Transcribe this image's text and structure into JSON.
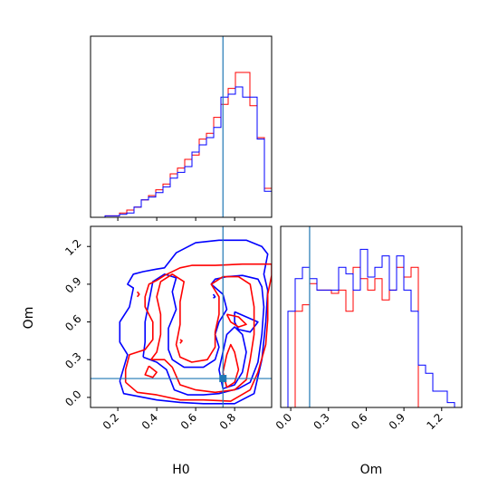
{
  "chart_data": {
    "type": "corner",
    "parameters": [
      "H0",
      "Om"
    ],
    "colors": {
      "red": "#ff0000",
      "blue": "#0000ff",
      "truth": "#1f77b4"
    },
    "truth": {
      "H0": 0.74,
      "Om": 0.15
    },
    "ranges": {
      "H0": [
        0.06,
        0.99
      ],
      "Om": [
        -0.08,
        1.36
      ]
    },
    "ticks": {
      "H0": [
        0.2,
        0.4,
        0.6,
        0.8
      ],
      "Om": [
        0.0,
        0.3,
        0.6,
        0.9,
        1.2
      ]
    },
    "tick_labels": {
      "H0": [
        "0.2",
        "0.4",
        "0.6",
        "0.8"
      ],
      "Om": [
        "0.0",
        "0.3",
        "0.6",
        "0.9",
        "1.2"
      ]
    },
    "xlabels": {
      "H0": "H0",
      "Om": "Om"
    },
    "ylabels": {
      "Om": "Om"
    },
    "hist_H0": {
      "edges": [
        0.06,
        0.0972,
        0.1344,
        0.1716,
        0.2088,
        0.246,
        0.2832,
        0.3204,
        0.3576,
        0.3948,
        0.432,
        0.4692,
        0.5064,
        0.5436,
        0.5808,
        0.618,
        0.6552,
        0.6924,
        0.7296,
        0.7668,
        0.804,
        0.8412,
        0.8784,
        0.9156,
        0.9528,
        0.99
      ],
      "series": [
        {
          "color": "red",
          "values": [
            0.0,
            0.0,
            0.01,
            0.01,
            0.03,
            0.05,
            0.07,
            0.12,
            0.15,
            0.19,
            0.23,
            0.3,
            0.34,
            0.4,
            0.43,
            0.54,
            0.58,
            0.69,
            0.78,
            0.89,
            1.0,
            1.0,
            0.77,
            0.55,
            0.2
          ]
        },
        {
          "color": "blue",
          "values": [
            0.0,
            0.0,
            0.01,
            0.01,
            0.02,
            0.03,
            0.07,
            0.12,
            0.14,
            0.17,
            0.21,
            0.27,
            0.31,
            0.35,
            0.45,
            0.5,
            0.55,
            0.62,
            0.83,
            0.85,
            0.9,
            0.83,
            0.83,
            0.54,
            0.18
          ]
        }
      ]
    },
    "hist_Om": {
      "edges": [
        -0.08,
        -0.0224,
        0.0352,
        0.0928,
        0.1504,
        0.208,
        0.2656,
        0.3232,
        0.3808,
        0.4384,
        0.496,
        0.5536,
        0.6112,
        0.6688,
        0.7264,
        0.784,
        0.8416,
        0.8992,
        0.9568,
        1.0144,
        1.072,
        1.1296,
        1.1872,
        1.2448,
        1.3024,
        1.36
      ],
      "series": [
        {
          "color": "red",
          "values": [
            0.0,
            0.0,
            0.59,
            0.63,
            0.76,
            0.72,
            0.72,
            0.7,
            0.72,
            0.59,
            0.86,
            0.79,
            0.72,
            0.79,
            0.66,
            0.72,
            0.86,
            0.8,
            0.86,
            0.0,
            0.0,
            0.0,
            0.0,
            0.0,
            0.0
          ]
        },
        {
          "color": "blue",
          "values": [
            0.0,
            0.59,
            0.79,
            0.86,
            0.79,
            0.72,
            0.72,
            0.72,
            0.86,
            0.82,
            0.72,
            0.97,
            0.8,
            0.86,
            0.93,
            0.72,
            0.93,
            0.72,
            0.59,
            0.26,
            0.21,
            0.1,
            0.1,
            0.03,
            0.0
          ]
        }
      ]
    },
    "contours": [
      {
        "color": "blue",
        "points": [
          [
            0.21,
            0.13
          ],
          [
            0.23,
            0.03
          ],
          [
            0.4,
            -0.02
          ],
          [
            0.52,
            -0.04
          ],
          [
            0.64,
            -0.05
          ],
          [
            0.8,
            -0.05
          ],
          [
            0.9,
            0.03
          ],
          [
            0.94,
            0.3
          ],
          [
            0.96,
            0.6
          ],
          [
            0.97,
            0.85
          ],
          [
            0.95,
            0.98
          ],
          [
            0.97,
            1.14
          ],
          [
            0.94,
            1.2
          ],
          [
            0.86,
            1.25
          ],
          [
            0.72,
            1.25
          ],
          [
            0.6,
            1.23
          ],
          [
            0.5,
            1.15
          ],
          [
            0.44,
            1.03
          ],
          [
            0.4,
            1.02
          ],
          [
            0.33,
            1.0
          ],
          [
            0.28,
            0.98
          ],
          [
            0.25,
            0.9
          ],
          [
            0.28,
            0.87
          ],
          [
            0.26,
            0.72
          ],
          [
            0.21,
            0.6
          ],
          [
            0.21,
            0.44
          ],
          [
            0.25,
            0.34
          ],
          [
            0.21,
            0.13
          ]
        ]
      },
      {
        "color": "blue",
        "points": [
          [
            0.33,
            0.32
          ],
          [
            0.4,
            0.28
          ],
          [
            0.45,
            0.22
          ],
          [
            0.49,
            0.06
          ],
          [
            0.56,
            0.02
          ],
          [
            0.64,
            0.02
          ],
          [
            0.72,
            0.03
          ],
          [
            0.82,
            0.07
          ],
          [
            0.88,
            0.12
          ],
          [
            0.92,
            0.28
          ],
          [
            0.94,
            0.5
          ],
          [
            0.95,
            0.72
          ],
          [
            0.94,
            0.88
          ],
          [
            0.92,
            0.94
          ],
          [
            0.84,
            0.97
          ],
          [
            0.76,
            0.96
          ],
          [
            0.7,
            0.94
          ],
          [
            0.68,
            0.9
          ],
          [
            0.74,
            0.82
          ],
          [
            0.76,
            0.7
          ],
          [
            0.72,
            0.6
          ],
          [
            0.7,
            0.5
          ],
          [
            0.72,
            0.4
          ],
          [
            0.7,
            0.3
          ],
          [
            0.64,
            0.24
          ],
          [
            0.54,
            0.24
          ],
          [
            0.48,
            0.3
          ],
          [
            0.46,
            0.38
          ],
          [
            0.46,
            0.55
          ],
          [
            0.5,
            0.7
          ],
          [
            0.48,
            0.84
          ],
          [
            0.5,
            0.95
          ],
          [
            0.44,
            0.98
          ],
          [
            0.38,
            0.92
          ],
          [
            0.36,
            0.76
          ],
          [
            0.34,
            0.6
          ],
          [
            0.34,
            0.44
          ],
          [
            0.33,
            0.32
          ]
        ]
      },
      {
        "color": "blue",
        "points": [
          [
            0.8,
            0.68
          ],
          [
            0.86,
            0.64
          ],
          [
            0.92,
            0.6
          ],
          [
            0.88,
            0.52
          ],
          [
            0.82,
            0.54
          ],
          [
            0.8,
            0.6
          ],
          [
            0.8,
            0.68
          ]
        ]
      },
      {
        "color": "blue",
        "points": [
          [
            0.74,
            0.07
          ],
          [
            0.8,
            0.1
          ],
          [
            0.84,
            0.2
          ],
          [
            0.86,
            0.36
          ],
          [
            0.84,
            0.5
          ],
          [
            0.8,
            0.56
          ],
          [
            0.76,
            0.5
          ],
          [
            0.74,
            0.36
          ],
          [
            0.72,
            0.22
          ],
          [
            0.74,
            0.07
          ]
        ]
      },
      {
        "color": "blue",
        "points": [
          [
            0.69,
            0.82
          ],
          [
            0.7,
            0.8
          ],
          [
            0.69,
            0.79
          ]
        ]
      },
      {
        "color": "red",
        "points": [
          [
            0.24,
            0.12
          ],
          [
            0.3,
            0.04
          ],
          [
            0.4,
            0.02
          ],
          [
            0.52,
            -0.02
          ],
          [
            0.64,
            -0.02
          ],
          [
            0.78,
            -0.03
          ],
          [
            0.88,
            0.06
          ],
          [
            0.92,
            0.2
          ],
          [
            0.96,
            0.42
          ],
          [
            0.97,
            0.62
          ],
          [
            0.97,
            0.82
          ],
          [
            0.99,
            0.97
          ],
          [
            0.99,
            1.06
          ],
          [
            0.84,
            1.06
          ],
          [
            0.7,
            1.05
          ],
          [
            0.58,
            1.05
          ],
          [
            0.52,
            1.03
          ],
          [
            0.44,
            0.97
          ],
          [
            0.4,
            0.93
          ],
          [
            0.36,
            0.9
          ],
          [
            0.34,
            0.8
          ],
          [
            0.34,
            0.72
          ],
          [
            0.38,
            0.6
          ],
          [
            0.38,
            0.46
          ],
          [
            0.34,
            0.38
          ],
          [
            0.26,
            0.34
          ],
          [
            0.24,
            0.22
          ],
          [
            0.24,
            0.12
          ]
        ]
      },
      {
        "color": "red",
        "points": [
          [
            0.37,
            0.3
          ],
          [
            0.44,
            0.3
          ],
          [
            0.48,
            0.24
          ],
          [
            0.52,
            0.1
          ],
          [
            0.6,
            0.06
          ],
          [
            0.7,
            0.04
          ],
          [
            0.8,
            0.06
          ],
          [
            0.86,
            0.14
          ],
          [
            0.88,
            0.3
          ],
          [
            0.9,
            0.5
          ],
          [
            0.9,
            0.72
          ],
          [
            0.88,
            0.9
          ],
          [
            0.82,
            0.96
          ],
          [
            0.74,
            0.96
          ],
          [
            0.68,
            0.9
          ],
          [
            0.72,
            0.8
          ],
          [
            0.72,
            0.66
          ],
          [
            0.7,
            0.52
          ],
          [
            0.7,
            0.4
          ],
          [
            0.66,
            0.3
          ],
          [
            0.58,
            0.28
          ],
          [
            0.52,
            0.32
          ],
          [
            0.5,
            0.42
          ],
          [
            0.52,
            0.58
          ],
          [
            0.52,
            0.76
          ],
          [
            0.54,
            0.92
          ],
          [
            0.48,
            0.98
          ],
          [
            0.42,
            0.92
          ],
          [
            0.4,
            0.8
          ],
          [
            0.42,
            0.66
          ],
          [
            0.42,
            0.5
          ],
          [
            0.4,
            0.36
          ],
          [
            0.37,
            0.3
          ]
        ]
      },
      {
        "color": "red",
        "points": [
          [
            0.36,
            0.25
          ],
          [
            0.4,
            0.2
          ],
          [
            0.38,
            0.16
          ],
          [
            0.34,
            0.18
          ],
          [
            0.36,
            0.25
          ]
        ]
      },
      {
        "color": "red",
        "points": [
          [
            0.76,
            0.66
          ],
          [
            0.82,
            0.64
          ],
          [
            0.86,
            0.58
          ],
          [
            0.82,
            0.56
          ],
          [
            0.78,
            0.6
          ],
          [
            0.76,
            0.66
          ]
        ]
      },
      {
        "color": "red",
        "points": [
          [
            0.76,
            0.08
          ],
          [
            0.8,
            0.12
          ],
          [
            0.82,
            0.22
          ],
          [
            0.8,
            0.36
          ],
          [
            0.78,
            0.42
          ],
          [
            0.76,
            0.34
          ],
          [
            0.74,
            0.2
          ],
          [
            0.76,
            0.08
          ]
        ]
      },
      {
        "color": "red",
        "points": [
          [
            0.52,
            0.46
          ],
          [
            0.53,
            0.45
          ],
          [
            0.52,
            0.43
          ]
        ]
      },
      {
        "color": "red",
        "points": [
          [
            0.3,
            0.84
          ],
          [
            0.31,
            0.82
          ],
          [
            0.3,
            0.8
          ]
        ]
      }
    ]
  }
}
